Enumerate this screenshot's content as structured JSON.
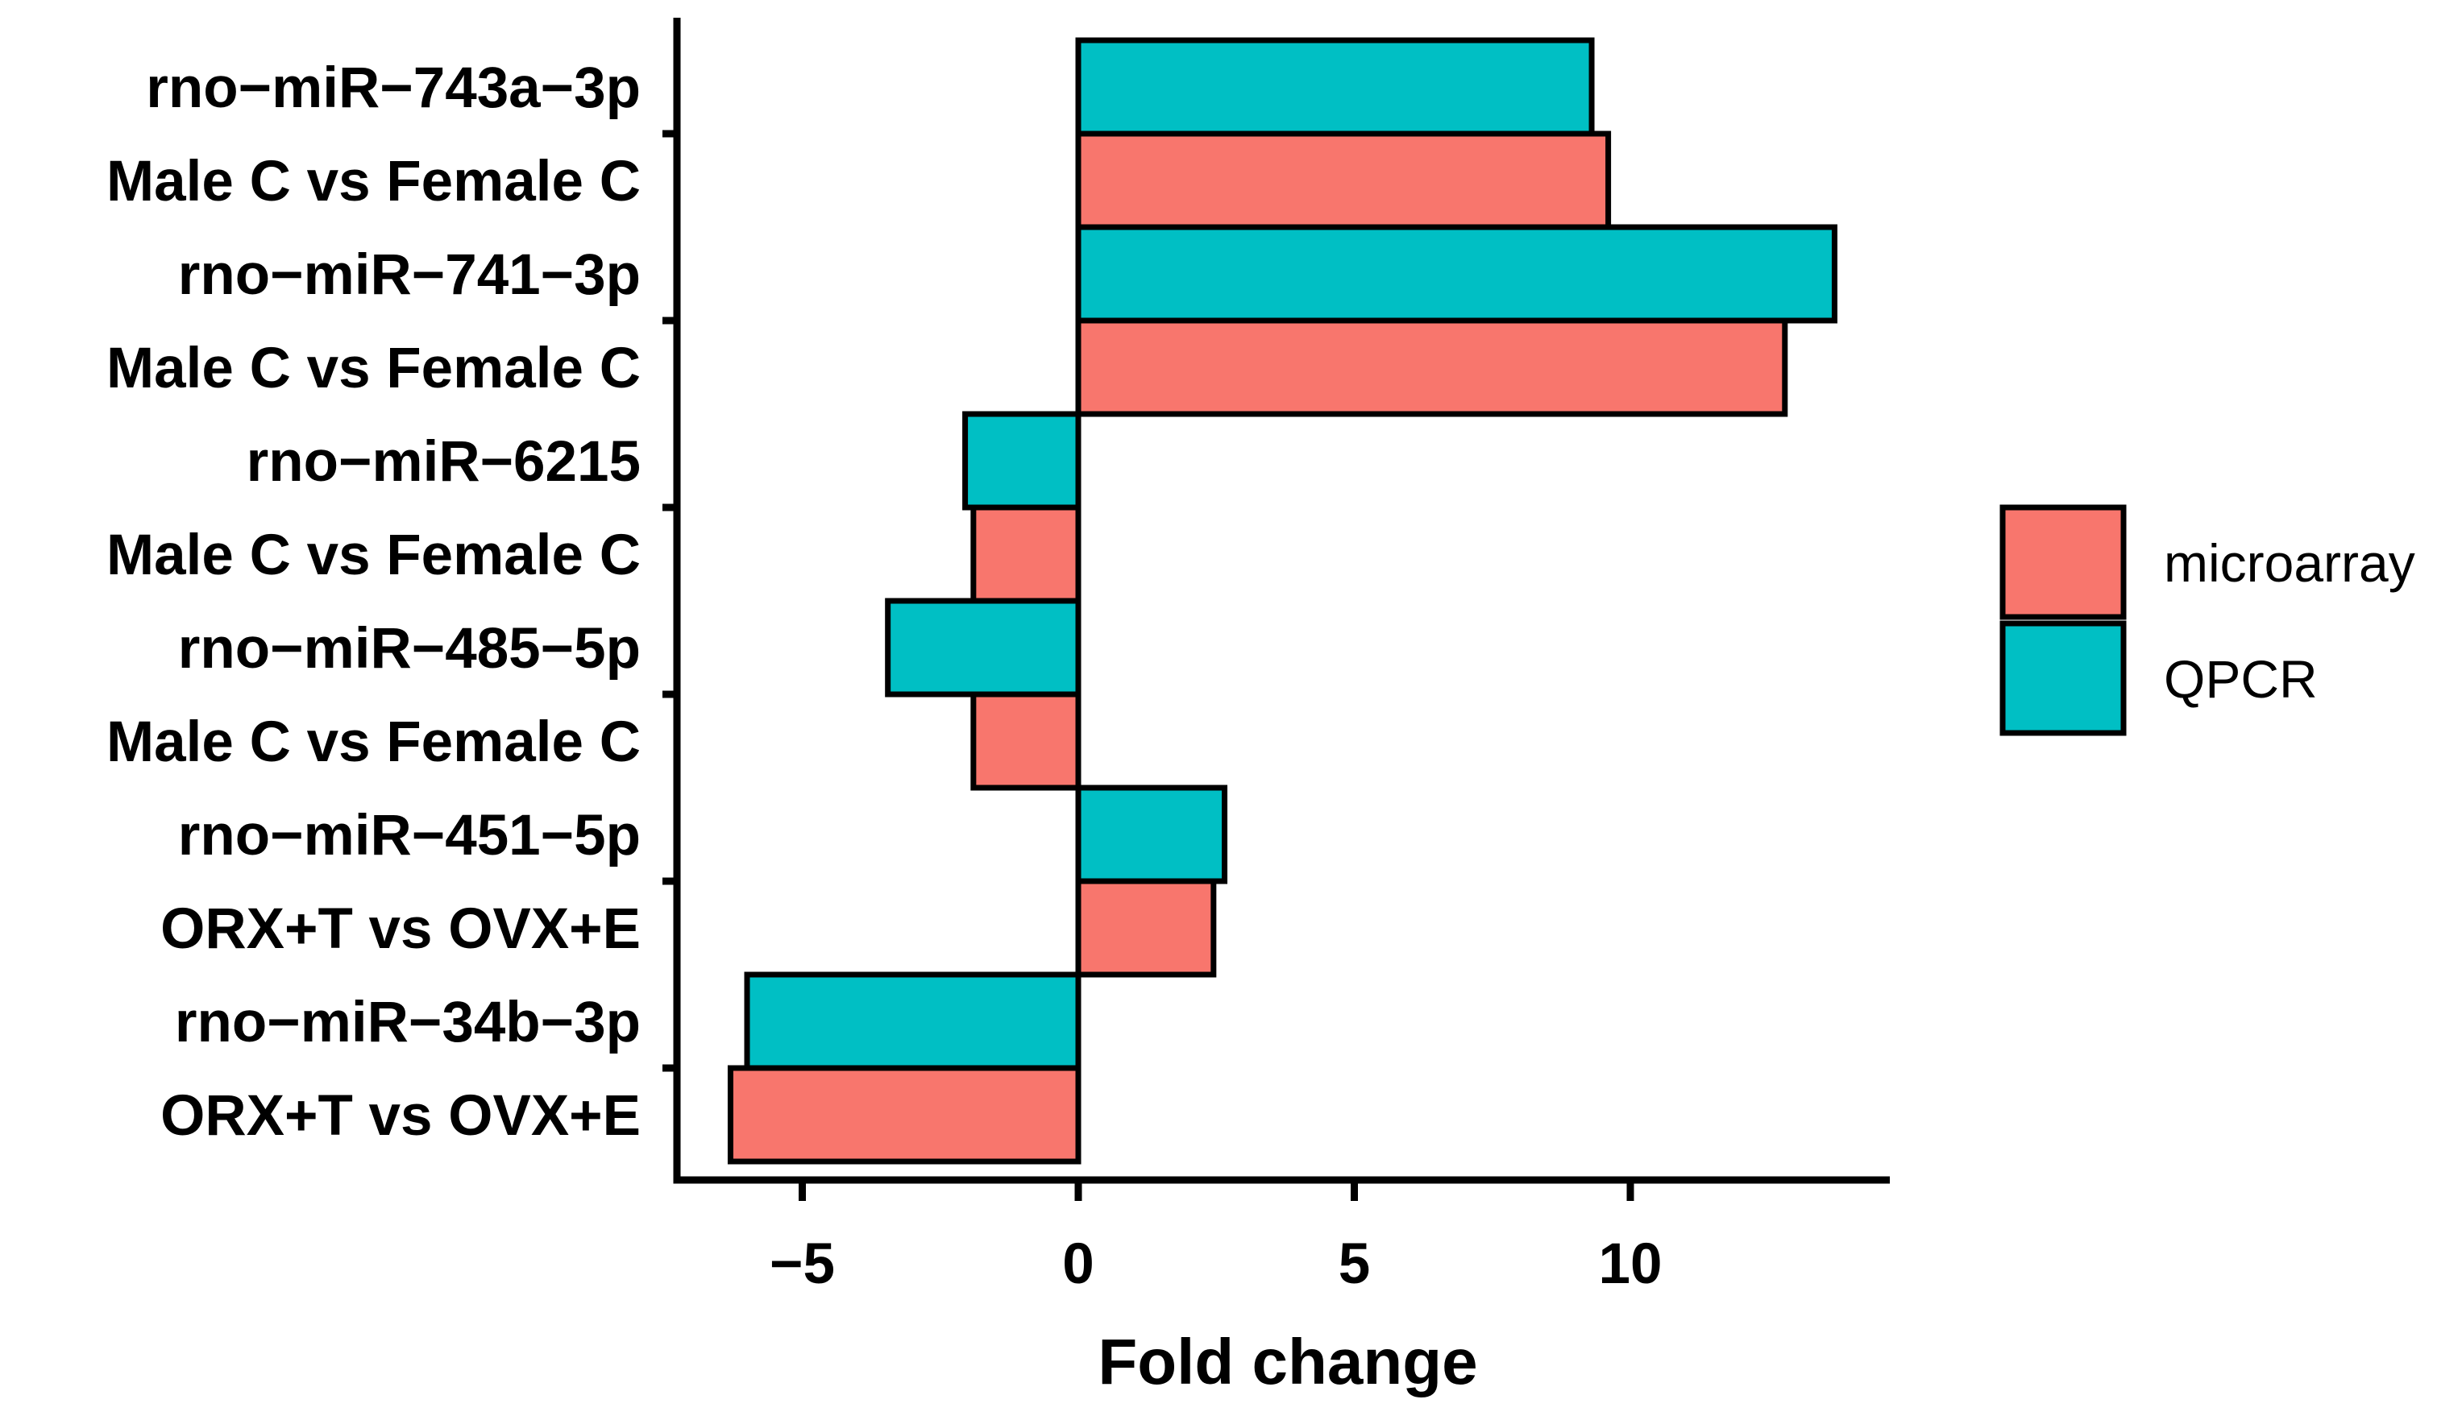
{
  "chart_data": {
    "type": "bar",
    "orientation": "horizontal",
    "categories": [
      [
        "rno−miR−743a−3p",
        "Male C vs Female C"
      ],
      [
        "rno−miR−741−3p",
        "Male C vs Female C"
      ],
      [
        "rno−miR−6215",
        "Male C vs Female C"
      ],
      [
        "rno−miR−485−5p",
        "Male C vs Female C"
      ],
      [
        "rno−miR−451−5p",
        "ORX+T vs OVX+E"
      ],
      [
        "rno−miR−34b−3p",
        "ORX+T vs OVX+E"
      ]
    ],
    "series": [
      {
        "name": "QPCR",
        "color": "#00BFC4",
        "values": [
          9.3,
          13.7,
          -2.05,
          -3.45,
          2.65,
          -6.0
        ]
      },
      {
        "name": "microarray",
        "color": "#F8766D",
        "values": [
          9.6,
          12.8,
          -1.9,
          -1.9,
          2.45,
          -6.3
        ]
      }
    ],
    "xlabel": "Fold change",
    "ylabel": "",
    "xlim": [
      -7.2,
      14.9
    ],
    "xticks": [
      -5,
      0,
      5,
      10
    ],
    "xtick_labels": [
      "−5",
      "0",
      "5",
      "10"
    ],
    "grid": false,
    "legend": {
      "position": "right",
      "entries": [
        {
          "label": "microarray",
          "color": "#F8766D"
        },
        {
          "label": "QPCR",
          "color": "#00BFC4"
        }
      ]
    }
  }
}
